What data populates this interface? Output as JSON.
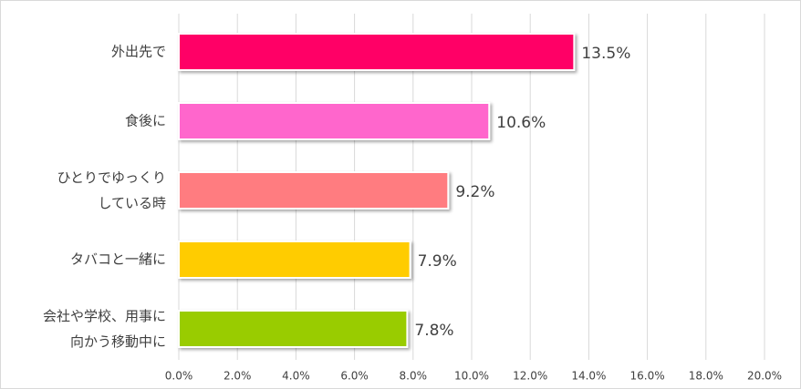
{
  "chart_data": {
    "type": "bar",
    "orientation": "horizontal",
    "categories": [
      "外出先で",
      "食後に",
      "ひとりでゆっくり\nしている時",
      "タバコと一緒に",
      "会社や学校、用事に\n向かう移動中に"
    ],
    "values": [
      13.5,
      10.6,
      9.2,
      7.9,
      7.8
    ],
    "value_labels": [
      "13.5%",
      "10.6%",
      "9.2%",
      "7.9%",
      "7.8%"
    ],
    "colors": [
      "#ff0066",
      "#ff66cc",
      "#ff7c80",
      "#ffcc00",
      "#99cc00"
    ],
    "xlim": [
      0,
      20
    ],
    "xticks": [
      {
        "value": 0,
        "label": "0.0%"
      },
      {
        "value": 2,
        "label": "2.0%"
      },
      {
        "value": 4,
        "label": "4.0%"
      },
      {
        "value": 6,
        "label": "6.0%"
      },
      {
        "value": 8,
        "label": "8.0%"
      },
      {
        "value": 10,
        "label": "10.0%"
      },
      {
        "value": 12,
        "label": "12.0%"
      },
      {
        "value": 14,
        "label": "14.0%"
      },
      {
        "value": 16,
        "label": "16.0%"
      },
      {
        "value": 18,
        "label": "18.0%"
      },
      {
        "value": 20,
        "label": "20.0%"
      }
    ],
    "grid": true
  }
}
